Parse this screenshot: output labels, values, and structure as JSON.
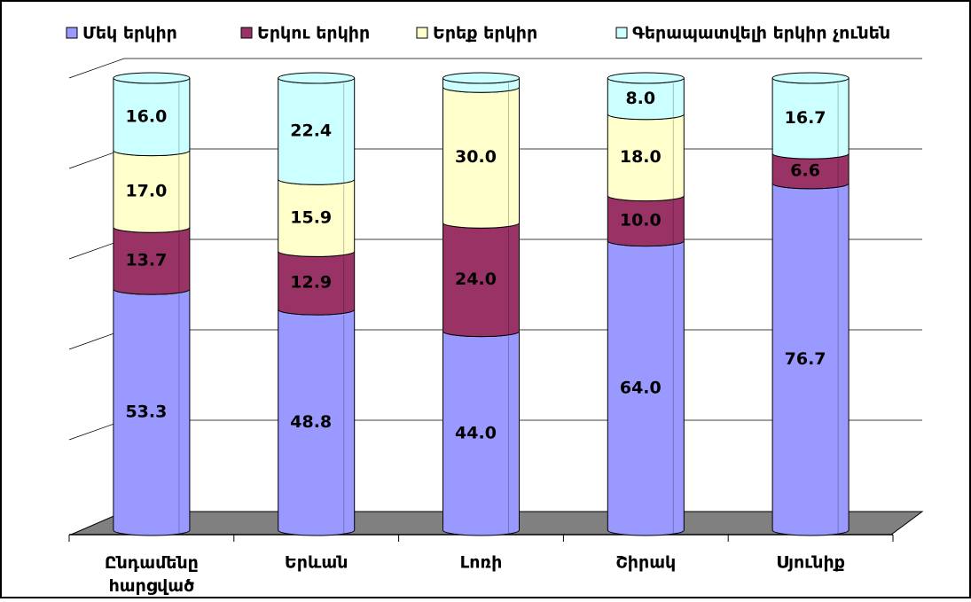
{
  "chart_data": {
    "type": "bar",
    "stacked": true,
    "categories": [
      "Ընդամենը հարցված",
      "Երևան",
      "Լոռի",
      "Շիրակ",
      "Սյունիք"
    ],
    "series": [
      {
        "name": "Մեկ երկիր",
        "color": "#9999ff",
        "values": [
          53.3,
          48.8,
          44.0,
          64.0,
          76.7
        ],
        "value_labels": [
          "53.3",
          "48.8",
          "44.0",
          "64.0",
          "76.7"
        ]
      },
      {
        "name": "Երկու երկիր",
        "color": "#993366",
        "values": [
          13.7,
          12.9,
          24.0,
          10.0,
          6.6
        ],
        "value_labels": [
          "13.7",
          "12.9",
          "24.0",
          "10.0",
          "6.6"
        ]
      },
      {
        "name": "Երեք երկիր",
        "color": "#ffffcc",
        "values": [
          17.0,
          15.9,
          30.0,
          18.0,
          0
        ],
        "value_labels": [
          "17.0",
          "15.9",
          "30.0",
          "18.0",
          null
        ]
      },
      {
        "name": "Գերապատվելի երկիր  չունեն",
        "color": "#ccffff",
        "values": [
          16.0,
          22.4,
          2.0,
          8.0,
          16.7
        ],
        "value_labels": [
          "16.0",
          "22.4",
          null,
          "8.0",
          "16.7"
        ]
      }
    ],
    "ylim": [
      0,
      100
    ],
    "yticks": [
      0,
      20,
      40,
      60,
      80,
      100
    ],
    "grid": true,
    "legend": "top"
  }
}
